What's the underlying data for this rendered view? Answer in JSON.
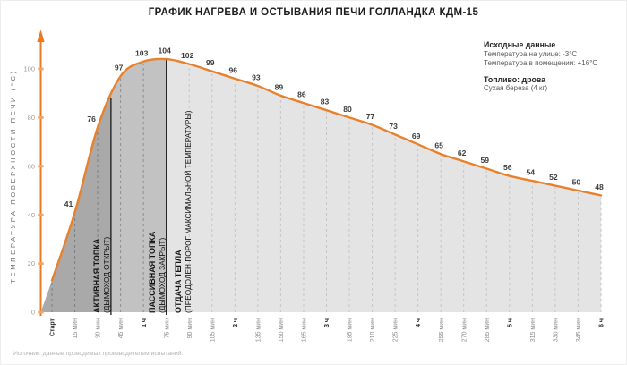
{
  "title": {
    "regular": "ГРАФИК НАГРЕВА И ОСТЫВАНИЯ",
    "bold": "ПЕЧИ ГОЛЛАНДКА КДМ-15"
  },
  "info": {
    "heading1": "Исходные данные",
    "line1": "Температура на улице: -3°С",
    "line2": "Температура в помещении: +16°С",
    "heading2": "Топливо: дрова",
    "line3": "Сухая береза (4 кг)"
  },
  "source": "Источник: данные проводимых производителем испытаний.",
  "chart_data": {
    "type": "area",
    "title": "ГРАФИК НАГРЕВА И ОСТЫВАНИЯ ПЕЧИ ГОЛЛАНДКА КДМ-15",
    "ylabel": "ТЕМПЕРАТУРА ПОВЕРХНОСТИ ПЕЧИ (°C)",
    "xlabel": "",
    "categories": [
      "Старт",
      "15 мин",
      "30 мин",
      "45 мин",
      "1 ч",
      "75 мин",
      "90 мин",
      "105 мин",
      "2 ч",
      "135 мин",
      "150 мин",
      "165 мин",
      "3 ч",
      "195 мин",
      "210 мин",
      "225 мин",
      "4 ч",
      "255 мин",
      "270 мин",
      "285 мин",
      "5 ч",
      "315 мин",
      "330 мин",
      "345 мин",
      "6 ч"
    ],
    "values": [
      13,
      41,
      76,
      97,
      103,
      104,
      102,
      99,
      96,
      93,
      89,
      86,
      83,
      80,
      77,
      73,
      69,
      65,
      62,
      59,
      56,
      54,
      52,
      50,
      48
    ],
    "labels_shown_from_index": 1,
    "yticks": [
      0,
      20,
      40,
      60,
      80,
      100
    ],
    "ylim": [
      0,
      115
    ],
    "grid": "vertical-dashed",
    "legend": "none",
    "hour_tick_indexes": [
      0,
      4,
      8,
      12,
      16,
      20,
      24
    ],
    "phases": [
      {
        "name": "АКТИВНАЯ ТОПКА",
        "detail": "(ДЫМОХОД ОТКРЫТ)",
        "end_tick_index": 2.58
      },
      {
        "name": "ПАССИВНАЯ ТОПКА",
        "detail": "(ДЫМОХОД ЗАКРЫТ)",
        "end_tick_index": 5
      },
      {
        "name": "ОТДАЧА ТЕПЛА",
        "detail": "(ПРЕОДОЛЕН ПОРОГ МАКСИМАЛЬНОЙ ТЕМПЕРАТУРЫ)",
        "end_tick_index": 24
      }
    ],
    "colors": {
      "line": "#E8812B",
      "axis": "#EE7A1F",
      "axis_tick": "#F3A567",
      "phase1_fill": "#a9a9a9",
      "phase2_fill": "#c2c2c2",
      "phase3_fill": "#e4e4e4",
      "dash_dark": "#7e7e7e",
      "dash_mid": "#8d8d8d",
      "dash_light": "#c6c6c6",
      "boundary_line": "#1b1b1b"
    }
  }
}
